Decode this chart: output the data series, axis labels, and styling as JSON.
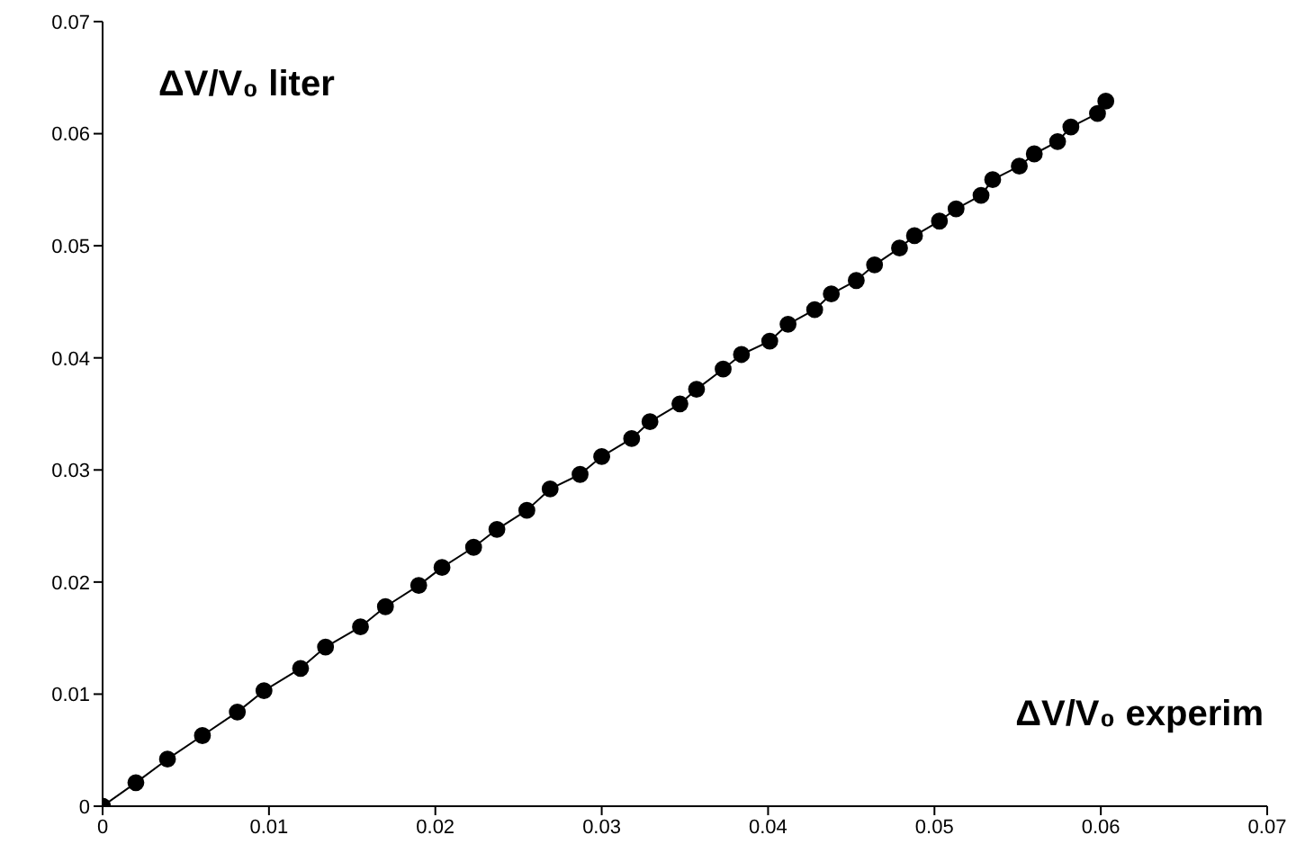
{
  "chart_data": {
    "type": "line",
    "xlabel": "ΔV/V₀ experim",
    "ylabel": "ΔV/V₀ liter",
    "x": [
      0,
      0.002,
      0.0039,
      0.006,
      0.0081,
      0.0097,
      0.0119,
      0.0134,
      0.0155,
      0.017,
      0.019,
      0.0204,
      0.0223,
      0.0237,
      0.0255,
      0.0269,
      0.0287,
      0.03,
      0.0318,
      0.0329,
      0.0347,
      0.0357,
      0.0373,
      0.0384,
      0.0401,
      0.0412,
      0.0428,
      0.0438,
      0.0453,
      0.0464,
      0.0479,
      0.0488,
      0.0503,
      0.0513,
      0.0528,
      0.0535,
      0.0551,
      0.056,
      0.0574,
      0.0582,
      0.0598,
      0.0603
    ],
    "series": [
      {
        "color": "#000000",
        "values": [
          0,
          0.0021,
          0.0042,
          0.0063,
          0.0084,
          0.0103,
          0.0123,
          0.0142,
          0.016,
          0.0178,
          0.0197,
          0.0213,
          0.0231,
          0.0247,
          0.0264,
          0.0283,
          0.0296,
          0.0312,
          0.0328,
          0.0343,
          0.0359,
          0.0372,
          0.039,
          0.0403,
          0.0415,
          0.043,
          0.0443,
          0.0457,
          0.0469,
          0.0483,
          0.0498,
          0.0509,
          0.0522,
          0.0533,
          0.0545,
          0.0559,
          0.0571,
          0.0582,
          0.0593,
          0.0606,
          0.0618,
          0.0629
        ]
      }
    ],
    "xlim": [
      0,
      0.07
    ],
    "xticks": [
      0,
      0.01,
      0.02,
      0.03,
      0.04,
      0.05,
      0.06,
      0.07
    ],
    "ylim": [
      0,
      0.07
    ],
    "yticks": [
      0,
      0.01,
      0.02,
      0.03,
      0.04,
      0.05,
      0.06,
      0.07
    ],
    "grid": false,
    "marker": "circle",
    "line_style": "solid"
  }
}
